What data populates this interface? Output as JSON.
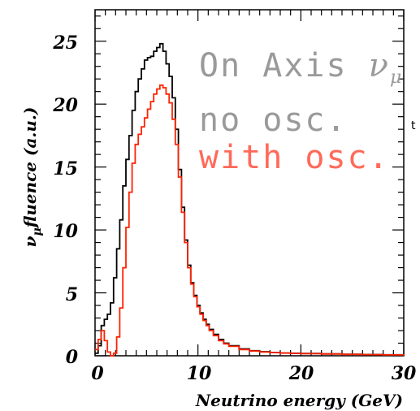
{
  "chart_data": {
    "type": "line",
    "xlabel": "Neutrino energy (GeV)",
    "ylabel": "fluence (a.u.)",
    "ylabel_prefix": "ν",
    "ylabel_subscript": "μ",
    "xlim": [
      0,
      30
    ],
    "ylim": [
      0,
      27.5
    ],
    "xticks": [
      0,
      10,
      20,
      30
    ],
    "yticks": [
      0,
      5,
      10,
      15,
      20,
      25
    ],
    "annotations": {
      "title_text": "On Axis ",
      "title_nu": "ν",
      "title_mu": "μ",
      "line1": "no osc.",
      "line2": "with osc."
    },
    "margin_marks": [
      "t"
    ],
    "series": [
      {
        "name": "no osc.",
        "color": "#000000",
        "x": [
          0,
          0.3,
          0.6,
          0.9,
          1.2,
          1.5,
          1.8,
          2.1,
          2.4,
          2.7,
          3.0,
          3.3,
          3.6,
          3.9,
          4.2,
          4.5,
          4.8,
          5.1,
          5.4,
          5.7,
          6.0,
          6.3,
          6.6,
          6.9,
          7.2,
          7.5,
          7.8,
          8.1,
          8.4,
          8.7,
          9.0,
          9.3,
          9.6,
          9.9,
          10.2,
          10.5,
          10.8,
          11.1,
          11.5,
          12,
          12.5,
          13,
          14,
          15,
          16,
          17,
          18,
          19,
          20,
          22,
          24,
          26,
          28,
          30
        ],
        "y": [
          0.2,
          0.8,
          2.4,
          2.9,
          3.3,
          4.2,
          6.2,
          8.5,
          10.8,
          13.5,
          15.6,
          17.5,
          19.5,
          21.0,
          22.0,
          22.8,
          23.5,
          23.7,
          23.8,
          24.2,
          24.5,
          24.8,
          24.2,
          23.2,
          22.2,
          20.5,
          18.0,
          14.8,
          11.8,
          9.2,
          7.2,
          5.8,
          4.8,
          4.0,
          3.4,
          2.9,
          2.5,
          2.1,
          1.7,
          1.3,
          1.0,
          0.8,
          0.55,
          0.4,
          0.32,
          0.26,
          0.22,
          0.2,
          0.18,
          0.15,
          0.12,
          0.1,
          0.08,
          0.06
        ]
      },
      {
        "name": "with osc.",
        "color": "#ff2200",
        "x": [
          0,
          0.3,
          0.6,
          0.9,
          1.2,
          1.5,
          1.8,
          2.1,
          2.4,
          2.7,
          3.0,
          3.3,
          3.6,
          3.9,
          4.2,
          4.5,
          4.8,
          5.1,
          5.4,
          5.7,
          6.0,
          6.3,
          6.6,
          6.9,
          7.2,
          7.5,
          7.8,
          8.1,
          8.4,
          8.7,
          9.0,
          9.3,
          9.6,
          9.9,
          10.2,
          10.5,
          10.8,
          11.1,
          11.5,
          12,
          12.5,
          13,
          14,
          15,
          16,
          17,
          18,
          19,
          20,
          22,
          24,
          26,
          28,
          30
        ],
        "y": [
          0.5,
          1.3,
          2.0,
          1.2,
          0.3,
          0.0,
          0.2,
          1.5,
          3.8,
          7.0,
          10.2,
          13.0,
          15.3,
          16.8,
          17.6,
          18.2,
          18.9,
          19.6,
          20.2,
          20.8,
          21.2,
          21.5,
          21.3,
          20.8,
          20.1,
          18.8,
          16.8,
          14.2,
          11.4,
          9.0,
          7.0,
          5.7,
          4.7,
          3.9,
          3.3,
          2.8,
          2.4,
          2.0,
          1.6,
          1.2,
          0.95,
          0.75,
          0.5,
          0.38,
          0.3,
          0.25,
          0.21,
          0.19,
          0.17,
          0.14,
          0.11,
          0.09,
          0.07,
          0.05
        ]
      }
    ]
  }
}
